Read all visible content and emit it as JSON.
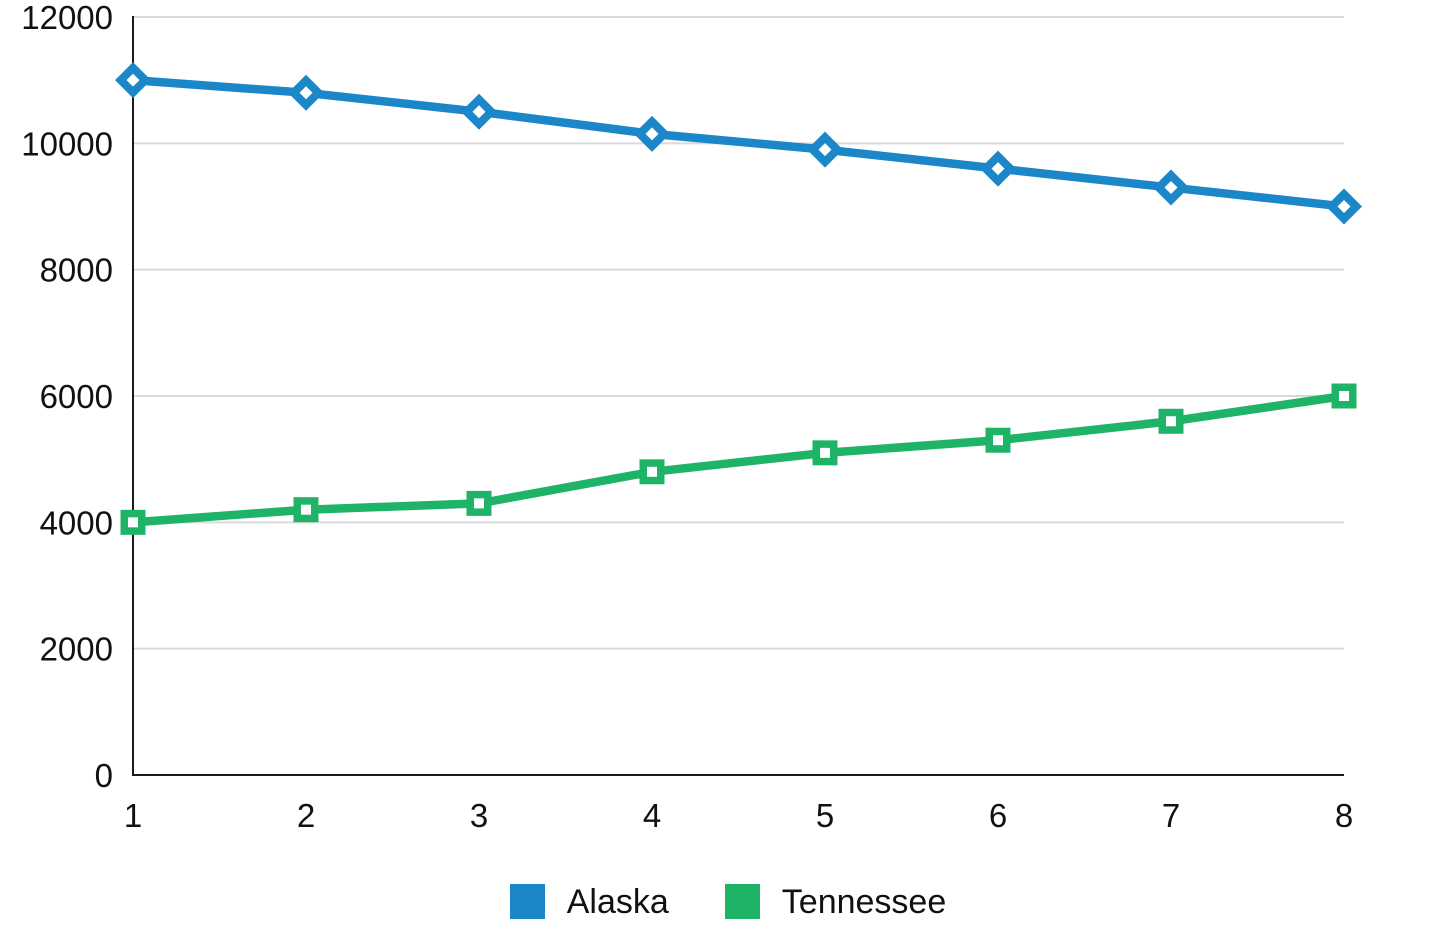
{
  "chart_data": {
    "type": "line",
    "title": "",
    "xlabel": "",
    "ylabel": "",
    "x": [
      1,
      2,
      3,
      4,
      5,
      6,
      7,
      8
    ],
    "x_tick_labels": [
      "1",
      "2",
      "3",
      "4",
      "5",
      "6",
      "7",
      "8"
    ],
    "ylim": [
      0,
      12000
    ],
    "ytick_step": 2000,
    "y_tick_labels": [
      "0",
      "2000",
      "4000",
      "6000",
      "8000",
      "10000",
      "12000"
    ],
    "grid": "horizontal",
    "gridline_color": "#d9d9d9",
    "axis_color": "#1a1a1a",
    "background": "#ffffff",
    "legend_position": "bottom",
    "series": [
      {
        "name": "Alaska",
        "color": "#1b86c8",
        "marker": "diamond",
        "values": [
          11000,
          10800,
          10500,
          10150,
          9900,
          9600,
          9300,
          9000
        ]
      },
      {
        "name": "Tennessee",
        "color": "#1fb367",
        "marker": "square",
        "values": [
          4000,
          4200,
          4300,
          4800,
          5100,
          5300,
          5600,
          6000
        ]
      }
    ]
  }
}
